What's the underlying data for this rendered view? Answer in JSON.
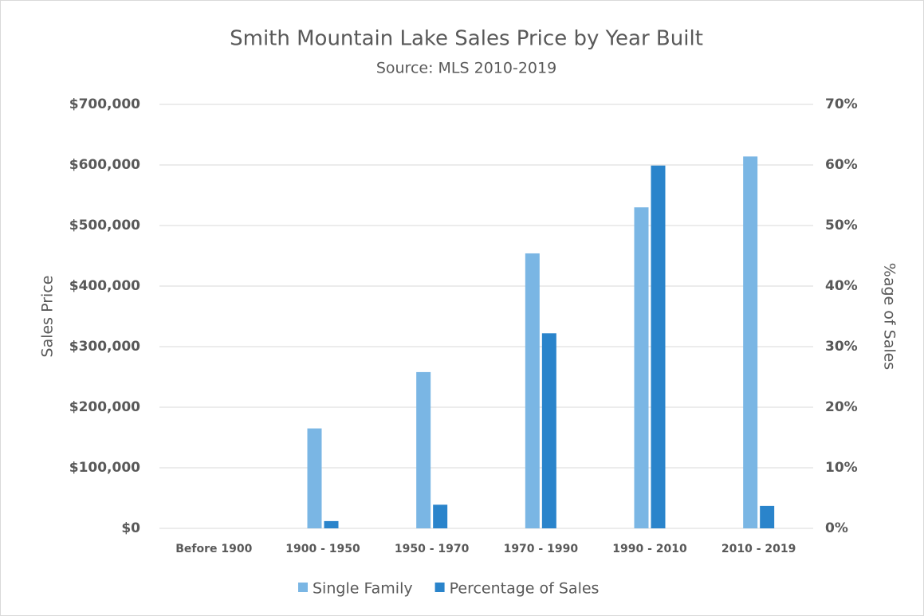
{
  "chart_data": {
    "type": "bar",
    "title": "Smith Mountain Lake Sales Price by Year Built",
    "subtitle": "Source: MLS 2010-2019",
    "y_label": "Sales Price",
    "y2_label": "%age of Sales",
    "categories": [
      "Before 1900",
      "1900 - 1950",
      "1950 - 1970",
      "1970 - 1990",
      "1990 - 2010",
      "2010 - 2019"
    ],
    "series": [
      {
        "name": "Single Family",
        "color": "#7ab6e4",
        "values": [
          0,
          165000,
          258000,
          454000,
          530000,
          614000
        ]
      },
      {
        "name": "Percentage of Sales",
        "color": "#2a84cb",
        "axis": "y2",
        "values": [
          0,
          1.2,
          3.9,
          32.2,
          59.9,
          3.7
        ]
      }
    ],
    "ylim": [
      0,
      700000
    ],
    "yticks": [
      {
        "value": 0,
        "label": "$0"
      },
      {
        "value": 100000,
        "label": "$100,000"
      },
      {
        "value": 200000,
        "label": "$200,000"
      },
      {
        "value": 300000,
        "label": "$300,000"
      },
      {
        "value": 400000,
        "label": "$400,000"
      },
      {
        "value": 500000,
        "label": "$500,000"
      },
      {
        "value": 600000,
        "label": "$600,000"
      },
      {
        "value": 700000,
        "label": "$700,000"
      }
    ],
    "y2lim": [
      0,
      70
    ],
    "y2ticks": [
      {
        "value": 0,
        "label": "0%"
      },
      {
        "value": 10,
        "label": "10%"
      },
      {
        "value": 20,
        "label": "20%"
      },
      {
        "value": 30,
        "label": "30%"
      },
      {
        "value": 40,
        "label": "40%"
      },
      {
        "value": 50,
        "label": "50%"
      },
      {
        "value": 60,
        "label": "60%"
      },
      {
        "value": 70,
        "label": "70%"
      }
    ],
    "grid": true,
    "legend": "bottom"
  }
}
